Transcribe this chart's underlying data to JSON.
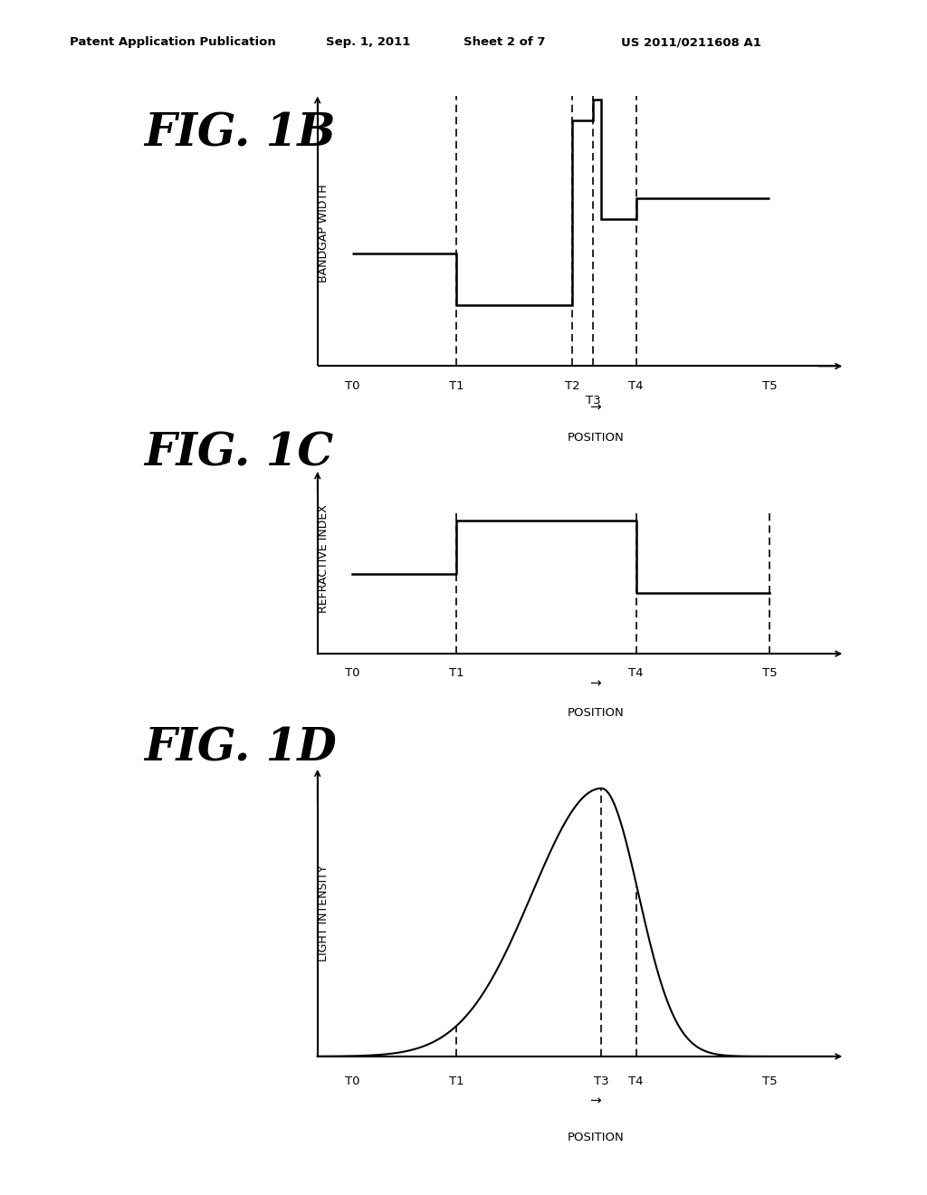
{
  "bg_color": "#ffffff",
  "header_text": "Patent Application Publication",
  "header_date": "Sep. 1, 2011",
  "header_sheet": "Sheet 2 of 7",
  "header_us": "US 2011/0211608 A1",
  "fig1b_title": "FIG. 1B",
  "fig1b_ylabel": "BANDGAP WIDTH",
  "fig1b_xlabel": "POSITION",
  "fig1c_title": "FIG. 1C",
  "fig1c_ylabel": "REFRACTIVE INDEX",
  "fig1c_xlabel": "POSITION",
  "fig1d_title": "FIG. 1D",
  "fig1d_ylabel": "LIGHT INTENSITY",
  "fig1d_xlabel": "POSITION",
  "text_color": "#000000"
}
